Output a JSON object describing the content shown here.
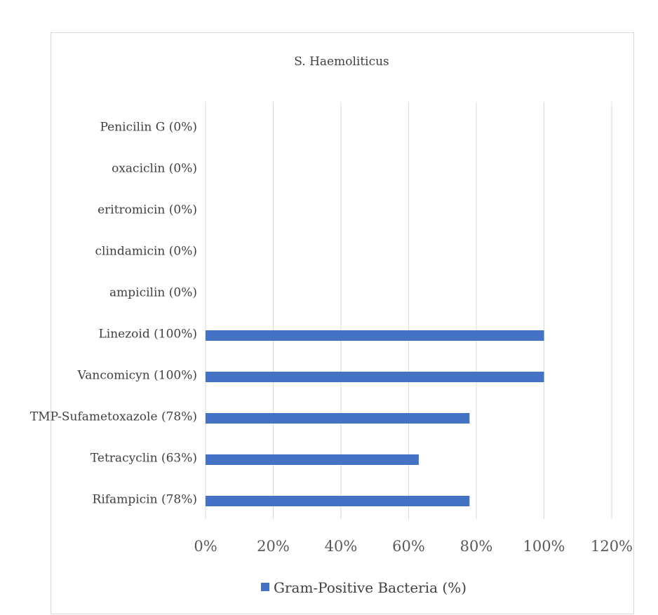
{
  "chart_data": {
    "type": "bar",
    "orientation": "horizontal",
    "title": "S. Haemoliticus",
    "xlabel": "",
    "ylabel": "",
    "categories": [
      "Penicilin G (0%)",
      "oxaciclin (0%)",
      "eritromicin (0%)",
      "clindamicin (0%)",
      "ampicilin (0%)",
      "Linezoid (100%)",
      "Vancomicyn (100%)",
      "TMP-Sufametoxazole (78%)",
      "Tetracyclin (63%)",
      "Rifampicin (78%)"
    ],
    "series": [
      {
        "name": "Gram-Positive Bacteria (%)",
        "values": [
          0,
          0,
          0,
          0,
          0,
          100,
          100,
          78,
          63,
          78
        ],
        "color": "#4472c4"
      }
    ],
    "xlim": [
      0,
      120
    ],
    "x_ticks": [
      0,
      20,
      40,
      60,
      80,
      100,
      120
    ],
    "x_tick_labels": [
      "0%",
      "20%",
      "40%",
      "60%",
      "80%",
      "100%",
      "120%"
    ],
    "grid": true,
    "grid_color": "#d9d9d9",
    "legend_position": "bottom",
    "legend_label": "Gram-Positive Bacteria (%)"
  }
}
